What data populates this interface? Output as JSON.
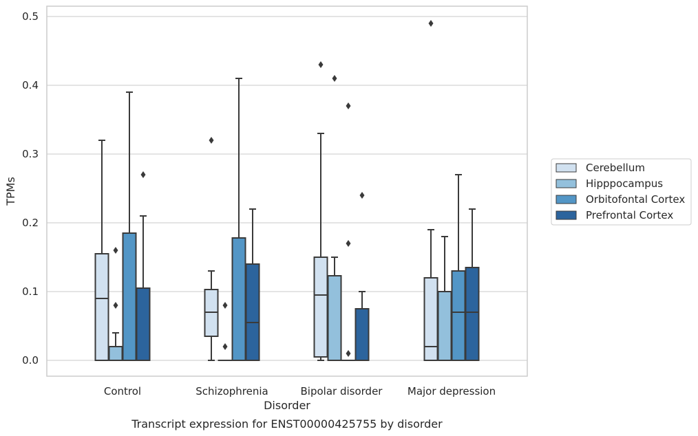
{
  "chart_data": {
    "type": "box",
    "title": "",
    "caption": "Transcript expression for ENST00000425755 by disorder",
    "xlabel": "Disorder",
    "ylabel": "TPMs",
    "ylim": [
      -0.024,
      0.515
    ],
    "yticks": [
      "0.0",
      "0.1",
      "0.2",
      "0.3",
      "0.4",
      "0.5"
    ],
    "ytick_values": [
      0,
      0.1,
      0.2,
      0.3,
      0.4,
      0.5
    ],
    "grid": true,
    "legend_position": "right",
    "categories": [
      "Control",
      "Schizophrenia",
      "Bipolar disorder",
      "Major depression"
    ],
    "series": [
      {
        "name": "Cerebellum",
        "color": "#d1e1f0",
        "boxes": [
          {
            "q1": 0.0,
            "median": 0.09,
            "q3": 0.155,
            "whislo": 0.0,
            "whishi": 0.32,
            "fliers": []
          },
          {
            "q1": 0.035,
            "median": 0.07,
            "q3": 0.103,
            "whislo": 0.0,
            "whishi": 0.13,
            "fliers": [
              0.32
            ]
          },
          {
            "q1": 0.005,
            "median": 0.095,
            "q3": 0.15,
            "whislo": 0.0,
            "whishi": 0.33,
            "fliers": [
              0.43
            ]
          },
          {
            "q1": 0.0,
            "median": 0.02,
            "q3": 0.12,
            "whislo": 0.0,
            "whishi": 0.19,
            "fliers": [
              0.49
            ]
          }
        ]
      },
      {
        "name": "Hipppocampus",
        "color": "#93c0dc",
        "boxes": [
          {
            "q1": 0.0,
            "median": 0.0,
            "q3": 0.02,
            "whislo": 0.0,
            "whishi": 0.04,
            "fliers": [
              0.08,
              0.16
            ]
          },
          {
            "q1": 0.0,
            "median": 0.0,
            "q3": 0.0,
            "whislo": 0.0,
            "whishi": 0.0,
            "fliers": [
              0.02,
              0.08
            ]
          },
          {
            "q1": 0.0,
            "median": 0.0,
            "q3": 0.123,
            "whislo": 0.0,
            "whishi": 0.15,
            "fliers": [
              0.41
            ]
          },
          {
            "q1": 0.0,
            "median": 0.0,
            "q3": 0.1,
            "whislo": 0.0,
            "whishi": 0.18,
            "fliers": []
          }
        ]
      },
      {
        "name": "Orbitofontal Cortex",
        "color": "#5396c6",
        "boxes": [
          {
            "q1": 0.0,
            "median": 0.0,
            "q3": 0.185,
            "whislo": 0.0,
            "whishi": 0.39,
            "fliers": []
          },
          {
            "q1": 0.0,
            "median": 0.0,
            "q3": 0.178,
            "whislo": 0.0,
            "whishi": 0.41,
            "fliers": []
          },
          {
            "q1": 0.0,
            "median": 0.0,
            "q3": 0.0,
            "whislo": 0.0,
            "whishi": 0.0,
            "fliers": [
              0.01,
              0.17,
              0.37
            ]
          },
          {
            "q1": 0.0,
            "median": 0.07,
            "q3": 0.13,
            "whislo": 0.0,
            "whishi": 0.27,
            "fliers": []
          }
        ]
      },
      {
        "name": "Prefrontal Cortex",
        "color": "#2c649d",
        "boxes": [
          {
            "q1": 0.0,
            "median": 0.0,
            "q3": 0.105,
            "whislo": 0.0,
            "whishi": 0.21,
            "fliers": [
              0.27
            ]
          },
          {
            "q1": 0.0,
            "median": 0.055,
            "q3": 0.14,
            "whislo": 0.0,
            "whishi": 0.22,
            "fliers": []
          },
          {
            "q1": 0.0,
            "median": 0.0,
            "q3": 0.075,
            "whislo": 0.0,
            "whishi": 0.1,
            "fliers": [
              0.24
            ]
          },
          {
            "q1": 0.0,
            "median": 0.07,
            "q3": 0.135,
            "whislo": 0.0,
            "whishi": 0.22,
            "fliers": []
          }
        ]
      }
    ]
  }
}
